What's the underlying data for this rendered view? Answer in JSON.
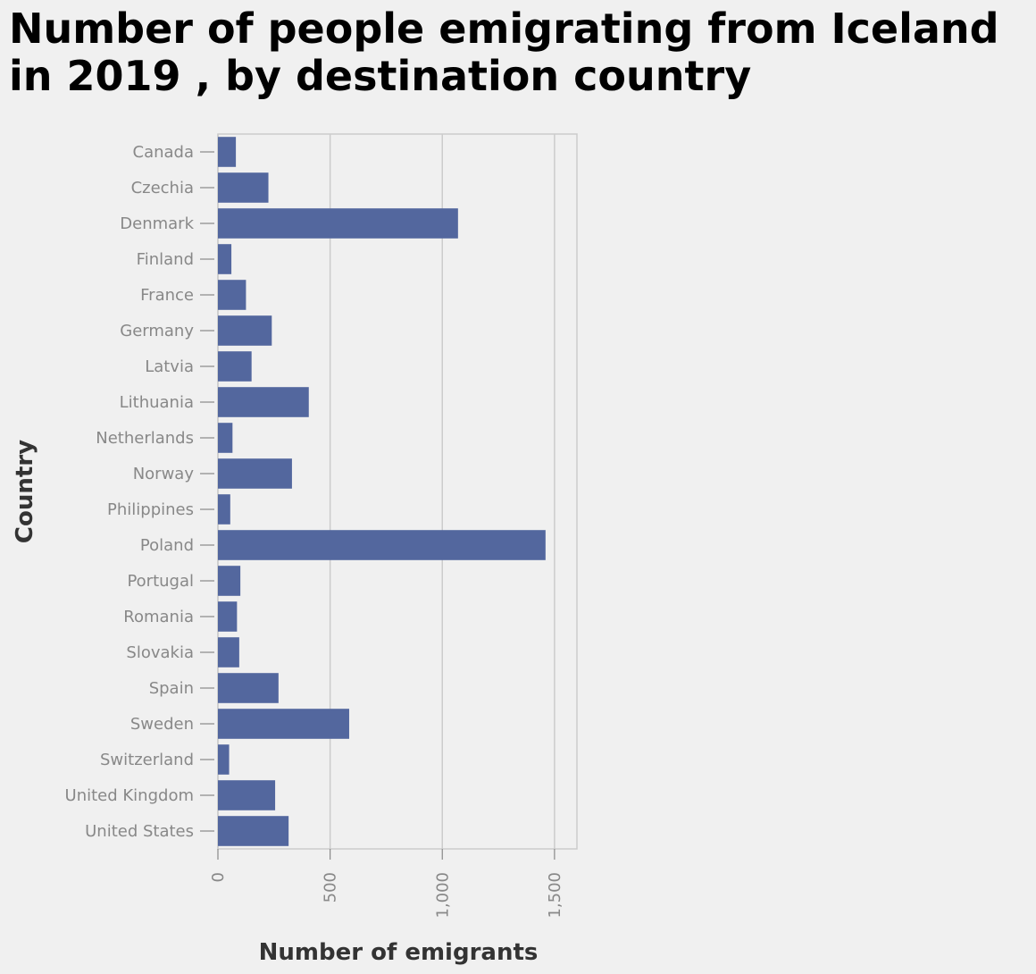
{
  "chart_data": {
    "type": "bar",
    "orientation": "horizontal",
    "title": "Number of people emigrating from Iceland in 2019 , by destination country",
    "xlabel": "Number of emigrants",
    "ylabel": "Country",
    "xlim": [
      0,
      1600
    ],
    "xticks": [
      0,
      500,
      1000,
      1500
    ],
    "xtick_labels": [
      "0",
      "500",
      "1,000",
      "1,500"
    ],
    "grid": true,
    "bar_color": "#53679e",
    "categories": [
      "Canada",
      "Czechia",
      "Denmark",
      "Finland",
      "France",
      "Germany",
      "Latvia",
      "Lithuania",
      "Netherlands",
      "Norway",
      "Philippines",
      "Poland",
      "Portugal",
      "Romania",
      "Slovakia",
      "Spain",
      "Sweden",
      "Switzerland",
      "United Kingdom",
      "United States"
    ],
    "values": [
      80,
      225,
      1070,
      60,
      125,
      240,
      150,
      405,
      65,
      330,
      55,
      1460,
      100,
      85,
      95,
      270,
      585,
      50,
      255,
      315
    ]
  }
}
